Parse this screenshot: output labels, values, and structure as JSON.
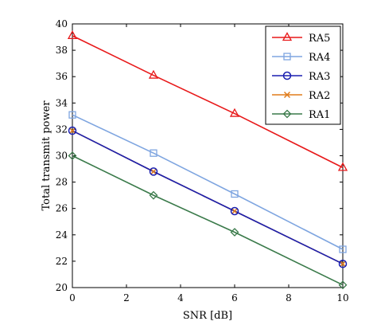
{
  "chart_data": {
    "type": "line",
    "title": "",
    "xlabel": "SNR [dB]",
    "ylabel": "Total transmit power",
    "xlim": [
      0,
      10
    ],
    "ylim": [
      20,
      40
    ],
    "xticks": [
      0,
      2,
      4,
      6,
      8,
      10
    ],
    "yticks": [
      20,
      22,
      24,
      26,
      28,
      30,
      32,
      34,
      36,
      38,
      40
    ],
    "x": [
      0,
      3,
      6,
      10
    ],
    "grid": false,
    "legend_position": "top-right",
    "series": [
      {
        "name": "RA5",
        "values": [
          39.1,
          36.1,
          33.2,
          29.1
        ],
        "color": "#e8191a",
        "marker": "triangle"
      },
      {
        "name": "RA4",
        "values": [
          33.1,
          30.2,
          27.1,
          22.9
        ],
        "color": "#7ea5e0",
        "marker": "square"
      },
      {
        "name": "RA3",
        "values": [
          31.9,
          28.8,
          25.8,
          21.8
        ],
        "color": "#1a1fb0",
        "marker": "circle"
      },
      {
        "name": "RA2",
        "values": [
          31.9,
          28.8,
          25.8,
          21.8
        ],
        "color": "#e07b1a",
        "marker": "x"
      },
      {
        "name": "RA1",
        "values": [
          30.0,
          27.0,
          24.2,
          20.2
        ],
        "color": "#3a7a4a",
        "marker": "diamond"
      }
    ]
  }
}
